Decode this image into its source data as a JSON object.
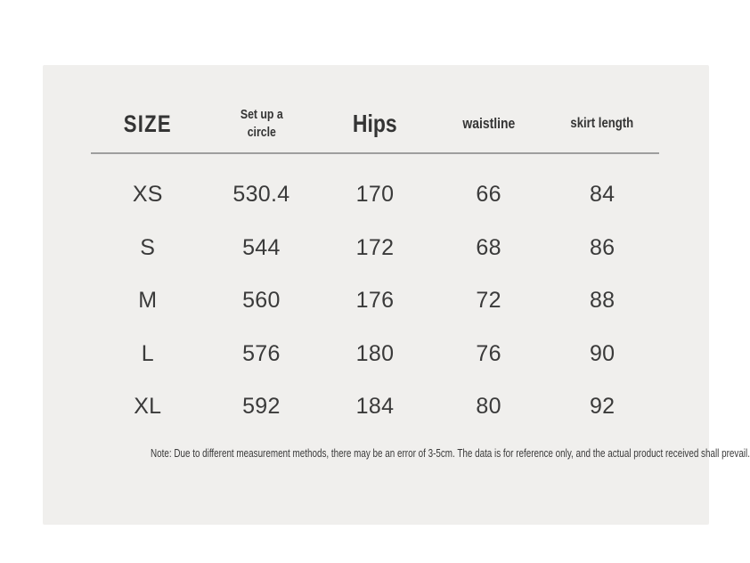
{
  "table": {
    "headers": [
      "SIZE",
      "Set up a\ncircle",
      "Hips",
      "waistline",
      "skirt length"
    ],
    "note": "Note: Due to different measurement methods, there may be an error of 3-5cm. The data is for reference only, and the actual product received shall prevail."
  },
  "chart_data": {
    "type": "table",
    "title": "Size chart",
    "columns": [
      "SIZE",
      "Set up a circle",
      "Hips",
      "waistline",
      "skirt length"
    ],
    "rows": [
      [
        "XS",
        "530.4",
        "170",
        "66",
        "84"
      ],
      [
        "S",
        "544",
        "172",
        "68",
        "86"
      ],
      [
        "M",
        "560",
        "176",
        "72",
        "88"
      ],
      [
        "L",
        "576",
        "180",
        "76",
        "90"
      ],
      [
        "XL",
        "592",
        "184",
        "80",
        "92"
      ]
    ]
  },
  "colors": {
    "page_background": "#ffffff",
    "panel_background": "#f0efed",
    "text": "#3a3a3a",
    "header_text": "#343434",
    "divider": "#9e9e9e"
  }
}
